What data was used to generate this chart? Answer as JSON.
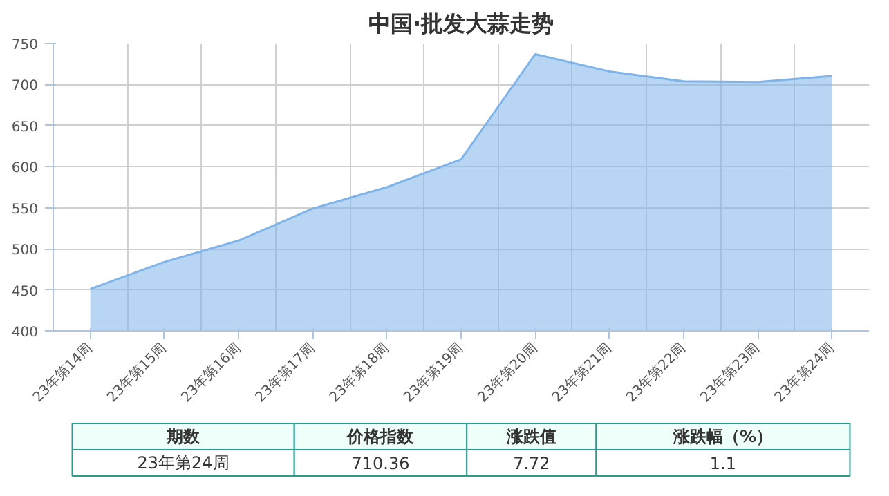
{
  "chart_data": {
    "type": "area",
    "title": "中国·批发大蒜走势",
    "categories": [
      "23年第14周",
      "23年第15周",
      "23年第16周",
      "23年第17周",
      "23年第18周",
      "23年第19周",
      "23年第20周",
      "23年第21周",
      "23年第22周",
      "23年第23周",
      "23年第24周"
    ],
    "series": [
      {
        "color": "#7eb4ea",
        "values": [
          451,
          484,
          510,
          549,
          575,
          609,
          737,
          716,
          704,
          703,
          710.36
        ]
      }
    ],
    "ylim": [
      400,
      750
    ],
    "yticks": [
      400,
      450,
      500,
      550,
      600,
      650,
      700,
      750
    ],
    "grid": true,
    "annotations": [
      "期数",
      "价格指数",
      "涨跌值",
      "涨跌幅（%）",
      "23年第24周",
      "710.36",
      "7.72",
      "1.1"
    ]
  }
}
